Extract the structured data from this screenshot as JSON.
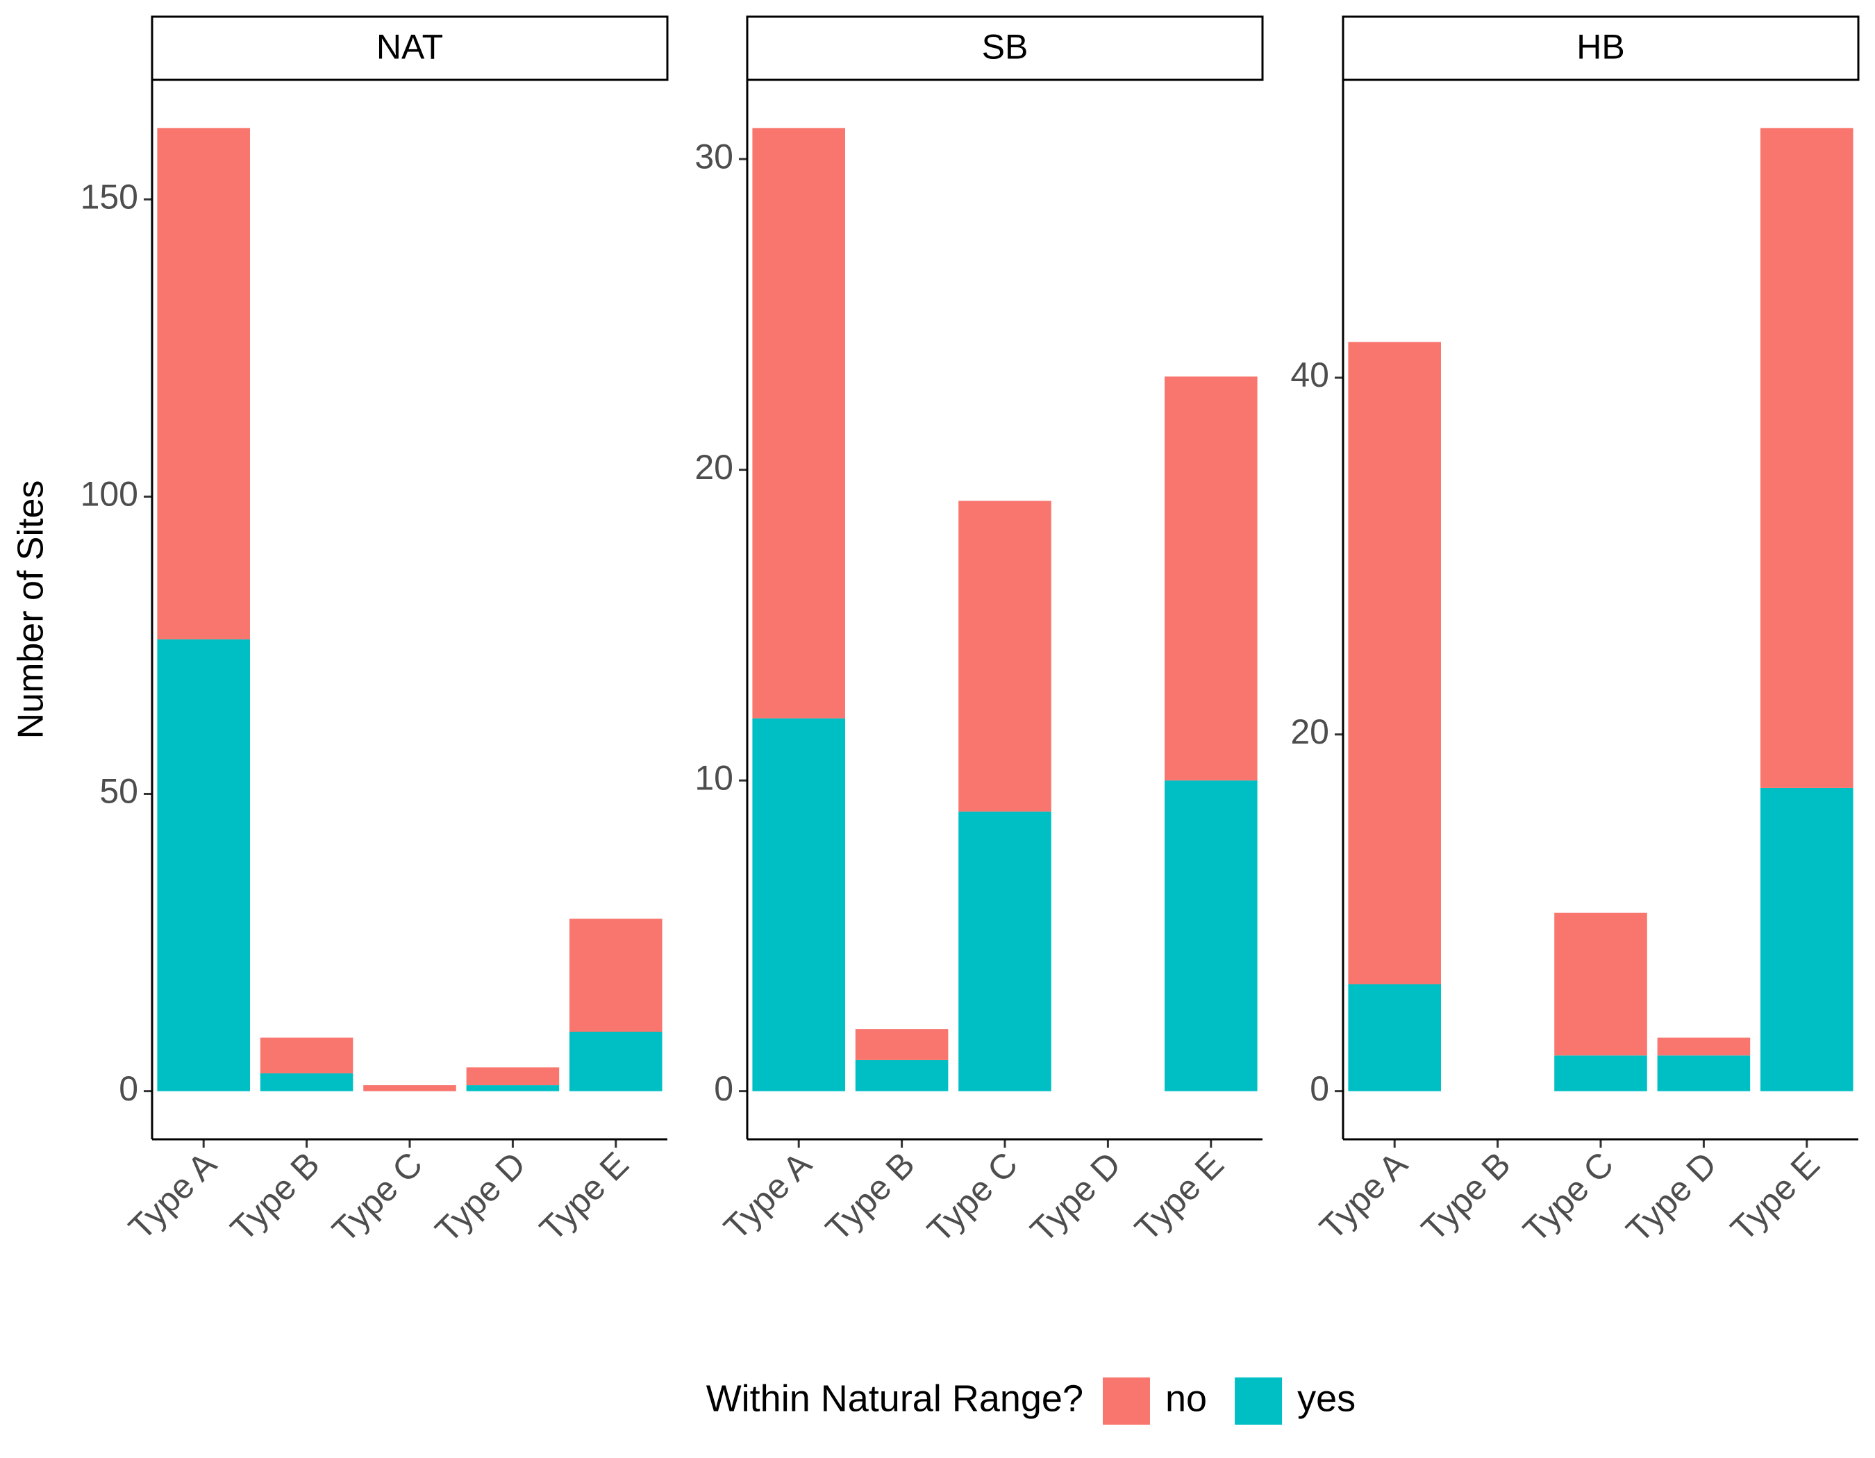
{
  "chart_data": [
    {
      "type": "bar",
      "stacked": true,
      "title": "NAT",
      "ylabel": "Number of Sites",
      "categories": [
        "Type A",
        "Type B",
        "Type C",
        "Type D",
        "Type E"
      ],
      "series": [
        {
          "name": "no",
          "color": "#F8766D",
          "values": [
            86,
            6,
            1,
            3,
            19
          ]
        },
        {
          "name": "yes",
          "color": "#00BFC4",
          "values": [
            76,
            3,
            0,
            1,
            10
          ]
        }
      ],
      "ylim": [
        -8.1,
        170.1
      ],
      "yticks": [
        0,
        50,
        100,
        150
      ],
      "grid": false
    },
    {
      "type": "bar",
      "stacked": true,
      "title": "SB",
      "categories": [
        "Type A",
        "Type B",
        "Type C",
        "Type D",
        "Type E"
      ],
      "series": [
        {
          "name": "no",
          "color": "#F8766D",
          "values": [
            19,
            1,
            10,
            0,
            13
          ]
        },
        {
          "name": "yes",
          "color": "#00BFC4",
          "values": [
            12,
            1,
            9,
            0,
            10
          ]
        }
      ],
      "ylim": [
        -1.55,
        32.55
      ],
      "yticks": [
        0,
        10,
        20,
        30
      ],
      "grid": false
    },
    {
      "type": "bar",
      "stacked": true,
      "title": "HB",
      "categories": [
        "Type A",
        "Type B",
        "Type C",
        "Type D",
        "Type E"
      ],
      "series": [
        {
          "name": "no",
          "color": "#F8766D",
          "values": [
            36,
            0,
            8,
            1,
            37
          ]
        },
        {
          "name": "yes",
          "color": "#00BFC4",
          "values": [
            6,
            0,
            2,
            2,
            17
          ]
        }
      ],
      "ylim": [
        -2.7,
        56.7
      ],
      "yticks": [
        0,
        20,
        40
      ],
      "grid": false
    }
  ],
  "legend": {
    "title": "Within Natural Range?",
    "position": "bottom"
  }
}
